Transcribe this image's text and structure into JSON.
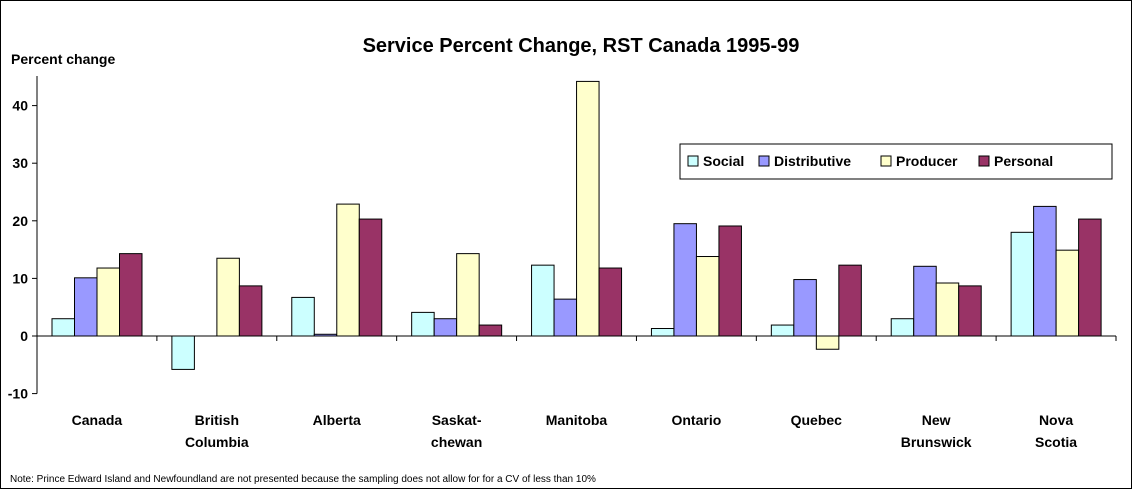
{
  "chart_data": {
    "type": "bar",
    "title": "Service Percent Change, RST Canada 1995-99",
    "ylabel": "Percent change",
    "xlabel": "",
    "ylim": [
      -10,
      45
    ],
    "yticks": [
      -10,
      0,
      10,
      20,
      30,
      40
    ],
    "grid": false,
    "legend_position": "top-right",
    "categories": [
      [
        "Canada"
      ],
      [
        "British",
        "Columbia"
      ],
      [
        "Alberta"
      ],
      [
        "Saskat-",
        "chewan"
      ],
      [
        "Manitoba"
      ],
      [
        "Ontario"
      ],
      [
        "Quebec"
      ],
      [
        "New",
        "Brunswick"
      ],
      [
        "Nova",
        "Scotia"
      ]
    ],
    "series": [
      {
        "name": "Social",
        "color": "#ccffff",
        "values": [
          3.0,
          -5.8,
          6.7,
          4.1,
          12.3,
          1.3,
          1.9,
          3.0,
          18.0
        ]
      },
      {
        "name": "Distributive",
        "color": "#9999ff",
        "values": [
          10.1,
          0,
          0.3,
          3.0,
          6.4,
          19.5,
          9.8,
          12.1,
          22.5
        ]
      },
      {
        "name": "Producer",
        "color": "#ffffcc",
        "values": [
          11.8,
          13.5,
          22.9,
          14.3,
          44.2,
          13.8,
          -2.3,
          9.2,
          14.9
        ]
      },
      {
        "name": "Personal",
        "color": "#993366",
        "values": [
          14.3,
          8.7,
          20.3,
          1.9,
          11.8,
          19.1,
          12.3,
          8.7,
          20.3
        ]
      }
    ]
  },
  "note": "Note: Prince Edward Island and Newfoundland are not presented because the sampling does not allow for for a CV of less than 10%"
}
